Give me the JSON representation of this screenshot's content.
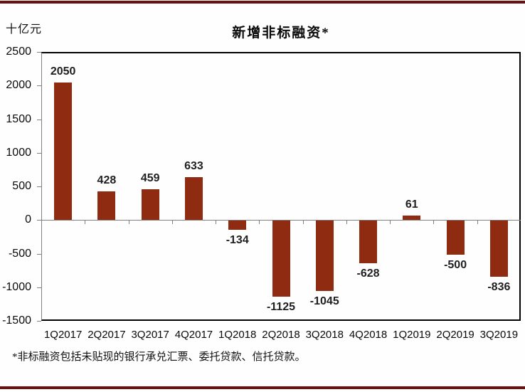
{
  "chart": {
    "unit_label": "十亿元",
    "title": "新增非标融资*",
    "footnote": "*非标融资包括未贴现的银行承兑汇票、委托贷款、信托贷款。"
  },
  "chart_data": {
    "type": "bar",
    "title": "新增非标融资*",
    "ylabel": "十亿元",
    "xlabel": "",
    "categories": [
      "1Q2017",
      "2Q2017",
      "3Q2017",
      "4Q2017",
      "1Q2018",
      "2Q2018",
      "3Q2018",
      "4Q2018",
      "1Q2019",
      "2Q2019",
      "3Q2019"
    ],
    "values": [
      2050,
      428,
      459,
      633,
      -134,
      -1125,
      -1045,
      -628,
      61,
      -500,
      -836
    ],
    "ylim": [
      -1500,
      2500
    ],
    "ytick_interval": 500,
    "grid": false,
    "legend": "none",
    "bar_color": "#8F2B11",
    "footnote": "*非标融资包括未贴现的银行承兑汇票、委托贷款、信托贷款。"
  },
  "colors": {
    "page_rule": "#6B1210",
    "bar": "#8F2B11",
    "axis_gray": "#808080",
    "frame_black": "#000000",
    "value_label": "#1f1f1f"
  }
}
